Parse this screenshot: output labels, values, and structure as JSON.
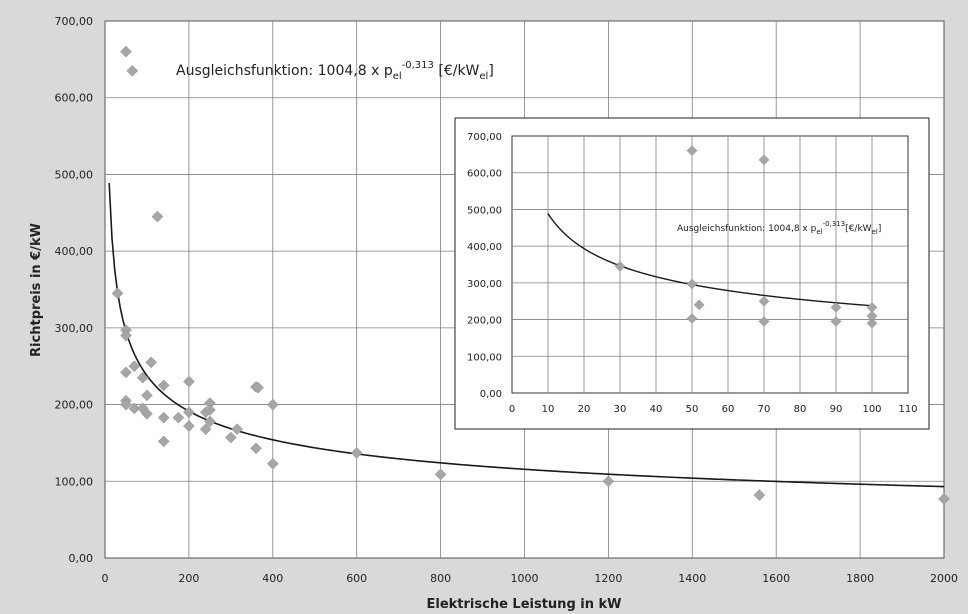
{
  "chart_data": [
    {
      "type": "scatter",
      "title": "",
      "xlabel": "Elektrische Leistung in kW",
      "ylabel": "Richtpreis in €/kW",
      "xlim": [
        0,
        2000
      ],
      "ylim": [
        0,
        700
      ],
      "x_ticks": [
        "0",
        "200",
        "400",
        "600",
        "800",
        "1000",
        "1200",
        "1400",
        "1600",
        "1800",
        "2000"
      ],
      "y_ticks": [
        "0,00",
        "100,00",
        "200,00",
        "300,00",
        "400,00",
        "500,00",
        "600,00",
        "700,00"
      ],
      "grid": true,
      "annotation": {
        "prefix": "Ausgleichsfunktion: 1004,8 x p",
        "sub1": "el",
        "sup": "-0,313",
        "mid": " [€/kW",
        "sub2": "el",
        "suffix": "]"
      },
      "fit": {
        "a": 1004.8,
        "b": -0.313,
        "x_range": [
          10,
          2000
        ]
      },
      "points": [
        {
          "x": 50,
          "y": 660
        },
        {
          "x": 65,
          "y": 635
        },
        {
          "x": 125,
          "y": 445
        },
        {
          "x": 30,
          "y": 345
        },
        {
          "x": 50,
          "y": 297
        },
        {
          "x": 50,
          "y": 290
        },
        {
          "x": 50,
          "y": 242
        },
        {
          "x": 70,
          "y": 250
        },
        {
          "x": 90,
          "y": 235
        },
        {
          "x": 110,
          "y": 255
        },
        {
          "x": 50,
          "y": 205
        },
        {
          "x": 50,
          "y": 200
        },
        {
          "x": 70,
          "y": 195
        },
        {
          "x": 90,
          "y": 195
        },
        {
          "x": 100,
          "y": 188
        },
        {
          "x": 100,
          "y": 212
        },
        {
          "x": 140,
          "y": 225
        },
        {
          "x": 140,
          "y": 183
        },
        {
          "x": 140,
          "y": 152
        },
        {
          "x": 175,
          "y": 183
        },
        {
          "x": 200,
          "y": 230
        },
        {
          "x": 200,
          "y": 190
        },
        {
          "x": 200,
          "y": 172
        },
        {
          "x": 240,
          "y": 190
        },
        {
          "x": 240,
          "y": 168
        },
        {
          "x": 250,
          "y": 202
        },
        {
          "x": 250,
          "y": 193
        },
        {
          "x": 250,
          "y": 178
        },
        {
          "x": 300,
          "y": 157
        },
        {
          "x": 315,
          "y": 168
        },
        {
          "x": 360,
          "y": 223
        },
        {
          "x": 365,
          "y": 222
        },
        {
          "x": 360,
          "y": 143
        },
        {
          "x": 400,
          "y": 200
        },
        {
          "x": 400,
          "y": 123
        },
        {
          "x": 600,
          "y": 137
        },
        {
          "x": 800,
          "y": 109
        },
        {
          "x": 1200,
          "y": 100
        },
        {
          "x": 1560,
          "y": 82
        },
        {
          "x": 2000,
          "y": 77
        }
      ]
    },
    {
      "type": "scatter",
      "title": "",
      "xlabel": "",
      "ylabel": "",
      "xlim": [
        0,
        110
      ],
      "ylim": [
        0,
        700
      ],
      "x_ticks": [
        "0",
        "10",
        "20",
        "30",
        "40",
        "50",
        "60",
        "70",
        "80",
        "90",
        "100",
        "110"
      ],
      "y_ticks": [
        "0,00",
        "100,00",
        "200,00",
        "300,00",
        "400,00",
        "500,00",
        "600,00",
        "700,00"
      ],
      "grid": true,
      "annotation": {
        "prefix": "Ausgleichsfunktion:  1004,8 x p",
        "sub1": "el",
        "sup": "-0,313",
        "mid": "[€/kW",
        "sub2": "el",
        "suffix": "]"
      },
      "fit": {
        "a": 1004.8,
        "b": -0.313,
        "x_range": [
          10,
          100
        ]
      },
      "points": [
        {
          "x": 50,
          "y": 660
        },
        {
          "x": 70,
          "y": 635
        },
        {
          "x": 30,
          "y": 345
        },
        {
          "x": 50,
          "y": 297
        },
        {
          "x": 52,
          "y": 240
        },
        {
          "x": 50,
          "y": 203
        },
        {
          "x": 70,
          "y": 250
        },
        {
          "x": 70,
          "y": 195
        },
        {
          "x": 90,
          "y": 233
        },
        {
          "x": 90,
          "y": 195
        },
        {
          "x": 100,
          "y": 233
        },
        {
          "x": 100,
          "y": 210
        },
        {
          "x": 100,
          "y": 190
        }
      ]
    }
  ],
  "colors": {
    "background": "#d9d9d9",
    "plot_background": "#ffffff",
    "grid": "#808080",
    "marker": "#a6a6a6",
    "curve": "#1a1a1a",
    "text": "#222222"
  }
}
